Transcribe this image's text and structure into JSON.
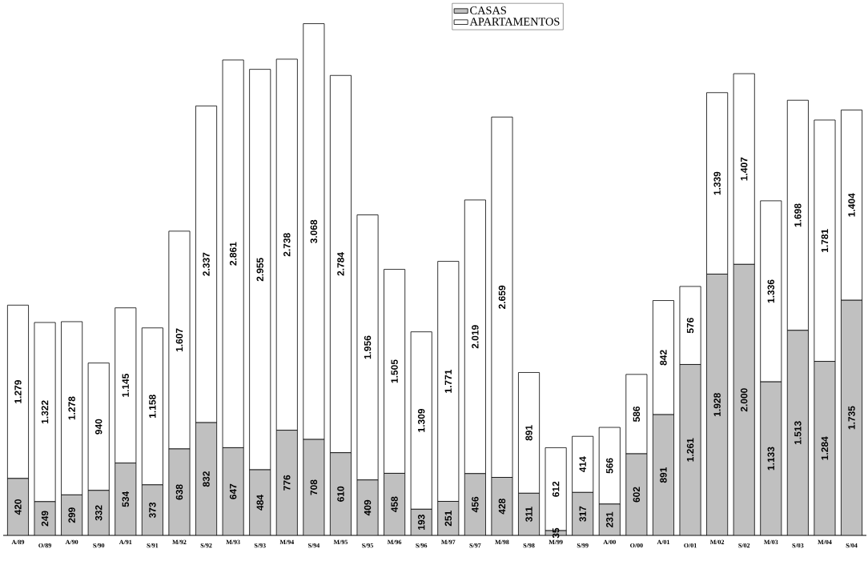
{
  "chart_data": {
    "type": "bar",
    "stacked": true,
    "legend": "top",
    "categories": [
      "A/89",
      "O/89",
      "A/90",
      "S/90",
      "A/91",
      "S/91",
      "M/92",
      "S/92",
      "M/93",
      "S/93",
      "M/94",
      "S/94",
      "M/95",
      "S/95",
      "M/96",
      "S/96",
      "M/97",
      "S/97",
      "M/98",
      "S/98",
      "M/99",
      "S/99",
      "A/00",
      "O/00",
      "A/01",
      "O/01",
      "M/02",
      "S/02",
      "M/03",
      "S/03",
      "M/04",
      "S/04"
    ],
    "series": [
      {
        "name": "CASAS",
        "color": "#c0c0c0",
        "values": [
          420,
          249,
          299,
          332,
          534,
          373,
          638,
          832,
          647,
          484,
          776,
          708,
          610,
          409,
          458,
          193,
          251,
          456,
          428,
          311,
          35,
          317,
          231,
          602,
          891,
          1261,
          1928,
          2000,
          1133,
          1513,
          1284,
          1735
        ],
        "value_labels": [
          "420",
          "249",
          "299",
          "332",
          "534",
          "373",
          "638",
          "832",
          "647",
          "484",
          "776",
          "708",
          "610",
          "409",
          "458",
          "193",
          "251",
          "456",
          "428",
          "311",
          "35",
          "317",
          "231",
          "602",
          "891",
          "1.261",
          "1.928",
          "2.000",
          "1.133",
          "1.513",
          "1.284",
          "1.735"
        ]
      },
      {
        "name": "APARTAMENTOS",
        "color": "#ffffff",
        "values": [
          1279,
          1322,
          1278,
          940,
          1145,
          1158,
          1607,
          2337,
          2861,
          2955,
          2738,
          3068,
          2784,
          1956,
          1505,
          1309,
          1771,
          2019,
          2659,
          891,
          612,
          414,
          566,
          586,
          842,
          576,
          1339,
          1407,
          1336,
          1698,
          1781,
          1404
        ],
        "value_labels": [
          "1.279",
          "1.322",
          "1.278",
          "940",
          "1.145",
          "1.158",
          "1.607",
          "2.337",
          "2.861",
          "2.955",
          "2.738",
          "3.068",
          "2.784",
          "1.956",
          "1.505",
          "1.309",
          "1.771",
          "2.019",
          "2.659",
          "891",
          "612",
          "414",
          "566",
          "586",
          "842",
          "576",
          "1.339",
          "1.407",
          "1.336",
          "1.698",
          "1.781",
          "1.404"
        ]
      }
    ]
  }
}
